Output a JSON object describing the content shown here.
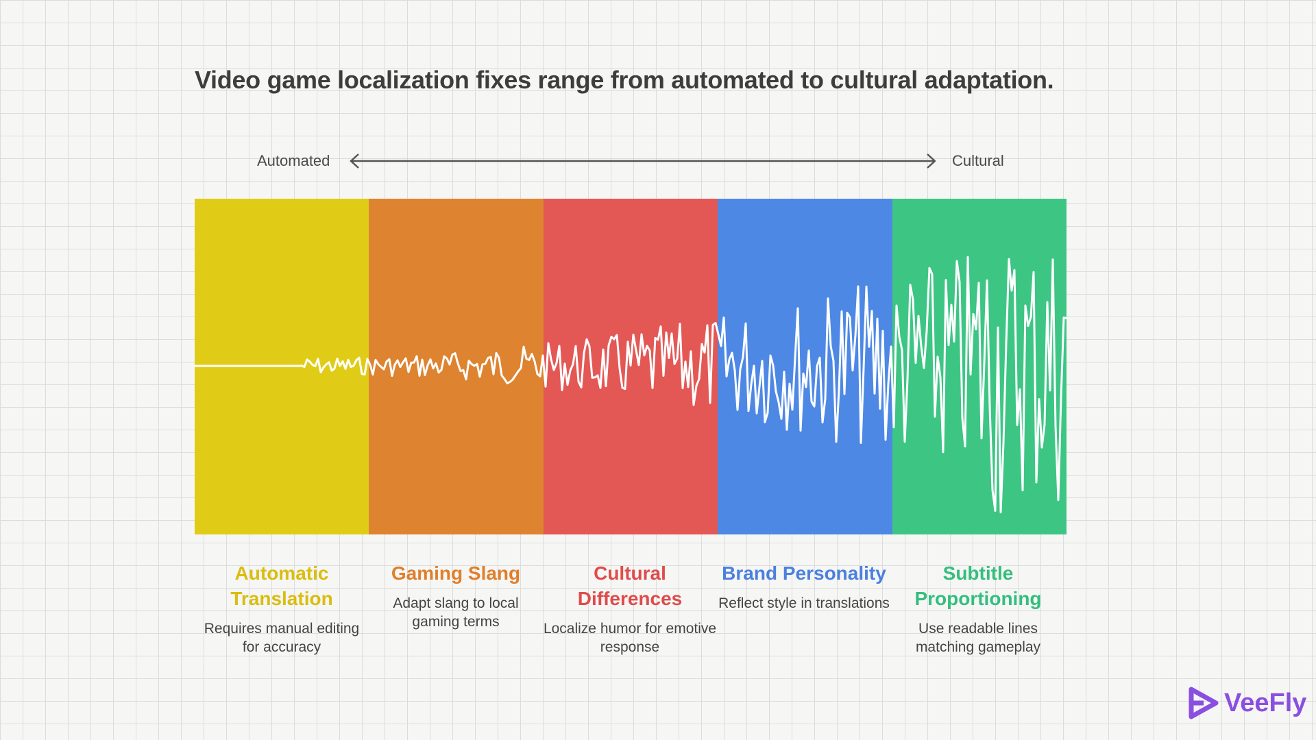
{
  "title": "Video game localization fixes range from automated to cultural adaptation.",
  "axis": {
    "left": "Automated",
    "right": "Cultural"
  },
  "colors": {
    "yellow": "#E0CC16",
    "orange": "#DE8330",
    "red": "#E35855",
    "blue": "#4E88E5",
    "green": "#3DC584"
  },
  "items": [
    {
      "title": "Automatic Translation",
      "desc": "Requires manual editing for accuracy",
      "color": "#E0CC16",
      "label_color": "#D9BD10"
    },
    {
      "title": "Gaming Slang",
      "desc": "Adapt slang to local gaming terms",
      "color": "#DE8330",
      "label_color": "#E07F2A"
    },
    {
      "title": "Cultural Differences",
      "desc": "Localize humor for emotive response",
      "color": "#E35855",
      "label_color": "#E04B4B"
    },
    {
      "title": "Brand Personality",
      "desc": "Reflect style in translations",
      "color": "#4E88E5",
      "label_color": "#4A80DF"
    },
    {
      "title": "Subtitle Proportioning",
      "desc": "Use readable lines matching gameplay",
      "color": "#3DC584",
      "label_color": "#34BE7E"
    }
  ],
  "logo": {
    "text": "VeeFly",
    "color": "#8A4FE0"
  }
}
